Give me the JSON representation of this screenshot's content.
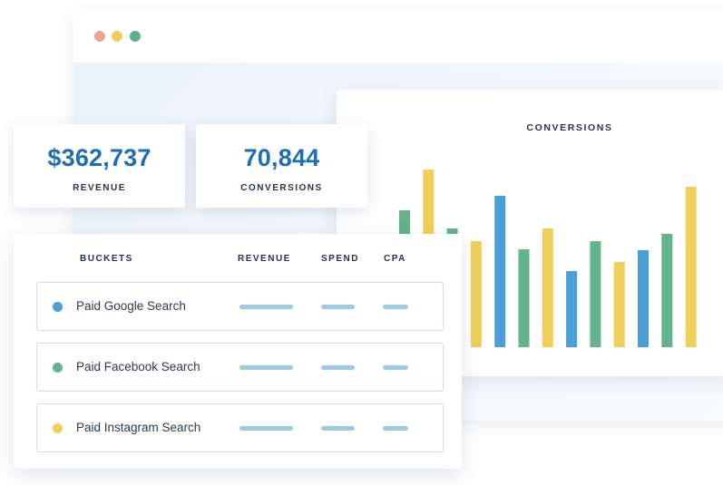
{
  "window": {
    "controls": [
      {
        "name": "close",
        "color": "#e8a58c"
      },
      {
        "name": "minimize",
        "color": "#edcd5c"
      },
      {
        "name": "maximize",
        "color": "#5fb08a"
      }
    ]
  },
  "stats": {
    "revenue": {
      "value": "$362,737",
      "label": "REVENUE"
    },
    "conversions": {
      "value": "70,844",
      "label": "CONVERSIONS"
    }
  },
  "chart": {
    "title": "CONVERSIONS"
  },
  "chart_data": {
    "type": "bar",
    "title": "CONVERSIONS",
    "xlabel": "",
    "ylabel": "",
    "ylim": [
      0,
      200
    ],
    "grid": false,
    "legend": "none",
    "series_colors": {
      "green": "#63b38b",
      "yellow": "#efcf5a",
      "blue": "#4a9fd6"
    },
    "bars": [
      {
        "color": "green",
        "value": 151
      },
      {
        "color": "yellow",
        "value": 196
      },
      {
        "color": "green",
        "value": 131
      },
      {
        "color": "yellow",
        "value": 117
      },
      {
        "color": "blue",
        "value": 167
      },
      {
        "color": "green",
        "value": 108
      },
      {
        "color": "yellow",
        "value": 131
      },
      {
        "color": "blue",
        "value": 84
      },
      {
        "color": "green",
        "value": 117
      },
      {
        "color": "yellow",
        "value": 94
      },
      {
        "color": "blue",
        "value": 107
      },
      {
        "color": "green",
        "value": 125
      },
      {
        "color": "yellow",
        "value": 177
      }
    ]
  },
  "table": {
    "headers": {
      "buckets": "BUCKETS",
      "revenue": "REVENUE",
      "spend": "SPEND",
      "cpa": "CPA"
    },
    "rows": [
      {
        "label": "Paid Google Search",
        "color": "#4a9fd6"
      },
      {
        "label": "Paid Facebook Search",
        "color": "#63b38b"
      },
      {
        "label": "Paid Instagram Search",
        "color": "#efcf5a"
      }
    ],
    "placeholder_color": "#9ccbdd"
  }
}
